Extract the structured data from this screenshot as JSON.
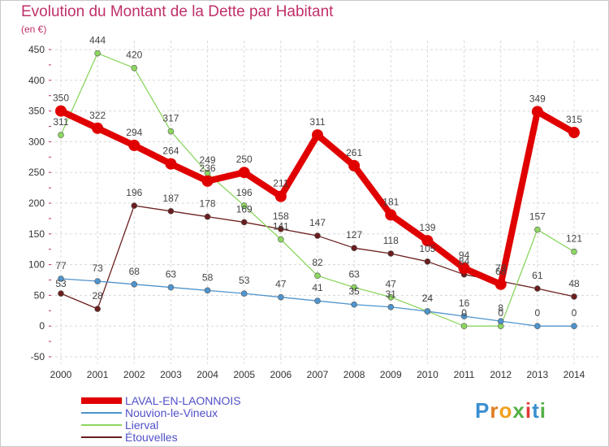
{
  "title": "Evolution du Montant de la Dette par Habitant",
  "unit": "(en €)",
  "brand": "Proxiti",
  "chart_data": {
    "type": "line",
    "x": [
      2000,
      2001,
      2002,
      2003,
      2004,
      2005,
      2006,
      2007,
      2008,
      2009,
      2010,
      2011,
      2012,
      2013,
      2014
    ],
    "ylim": [
      -50,
      450
    ],
    "yticks": [
      -50,
      0,
      50,
      100,
      150,
      200,
      250,
      300,
      350,
      400,
      450
    ],
    "grid": true,
    "legend_position": "bottom-left",
    "series": [
      {
        "name": "LAVAL-EN-LAONNOIS",
        "color": "#e00000",
        "values": [
          350,
          322,
          294,
          264,
          236,
          250,
          211,
          311,
          261,
          181,
          139,
          94,
          68,
          349,
          315
        ]
      },
      {
        "name": "Nouvion-le-Vineux",
        "color": "#4f94cd",
        "values": [
          77,
          73,
          68,
          63,
          58,
          53,
          47,
          41,
          35,
          31,
          24,
          16,
          8,
          0,
          0
        ]
      },
      {
        "name": "Lierval",
        "color": "#8cd660",
        "values": [
          311,
          444,
          420,
          317,
          249,
          196,
          141,
          82,
          63,
          47,
          24,
          0,
          0,
          157,
          121
        ]
      },
      {
        "name": "Étouvelles",
        "color": "#6b1e1e",
        "values": [
          53,
          28,
          196,
          187,
          178,
          169,
          158,
          147,
          127,
          118,
          105,
          84,
          73,
          61,
          48
        ]
      }
    ]
  }
}
